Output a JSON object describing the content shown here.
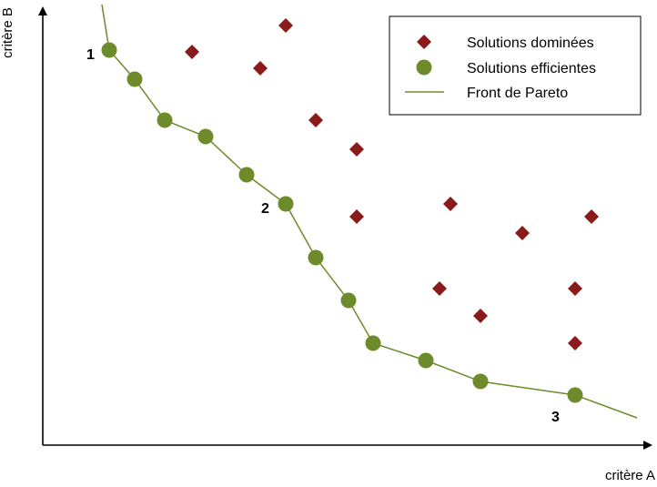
{
  "chart_data": {
    "type": "scatter",
    "xlabel": "critère A",
    "ylabel": "critère B",
    "ticks": "none",
    "grid": false,
    "legend_position": "top-right",
    "series": [
      {
        "name": "Solutions dominées",
        "marker": "diamond",
        "color": "#8b1a1a",
        "x": [
          211,
          314,
          286,
          347,
          392,
          392,
          495,
          574,
          650,
          483,
          528,
          632,
          632
        ],
        "y": [
          478,
          507,
          460,
          403,
          371,
          297,
          311,
          279,
          297,
          218,
          188,
          218,
          158
        ]
      },
      {
        "name": "Solutions efficientes",
        "marker": "circle",
        "color": "#6e8b2b",
        "x": [
          120,
          148,
          181,
          226,
          271,
          314,
          347,
          383,
          410,
          468,
          528,
          632
        ],
        "y": [
          480,
          448,
          403,
          385,
          343,
          311,
          252,
          205,
          158,
          139,
          116,
          101
        ]
      },
      {
        "name": "Front de Pareto",
        "marker": "line",
        "color": "#6e8b2b",
        "x": [
          112,
          120,
          148,
          181,
          226,
          271,
          314,
          347,
          383,
          410,
          468,
          528,
          632,
          700
        ],
        "y": [
          530,
          480,
          448,
          403,
          385,
          343,
          311,
          252,
          205,
          158,
          139,
          116,
          101,
          76
        ]
      }
    ],
    "annotations": [
      {
        "text": "1",
        "x": 120,
        "y": 480
      },
      {
        "text": "2",
        "x": 314,
        "y": 311
      },
      {
        "text": "3",
        "x": 632,
        "y": 101
      }
    ]
  }
}
